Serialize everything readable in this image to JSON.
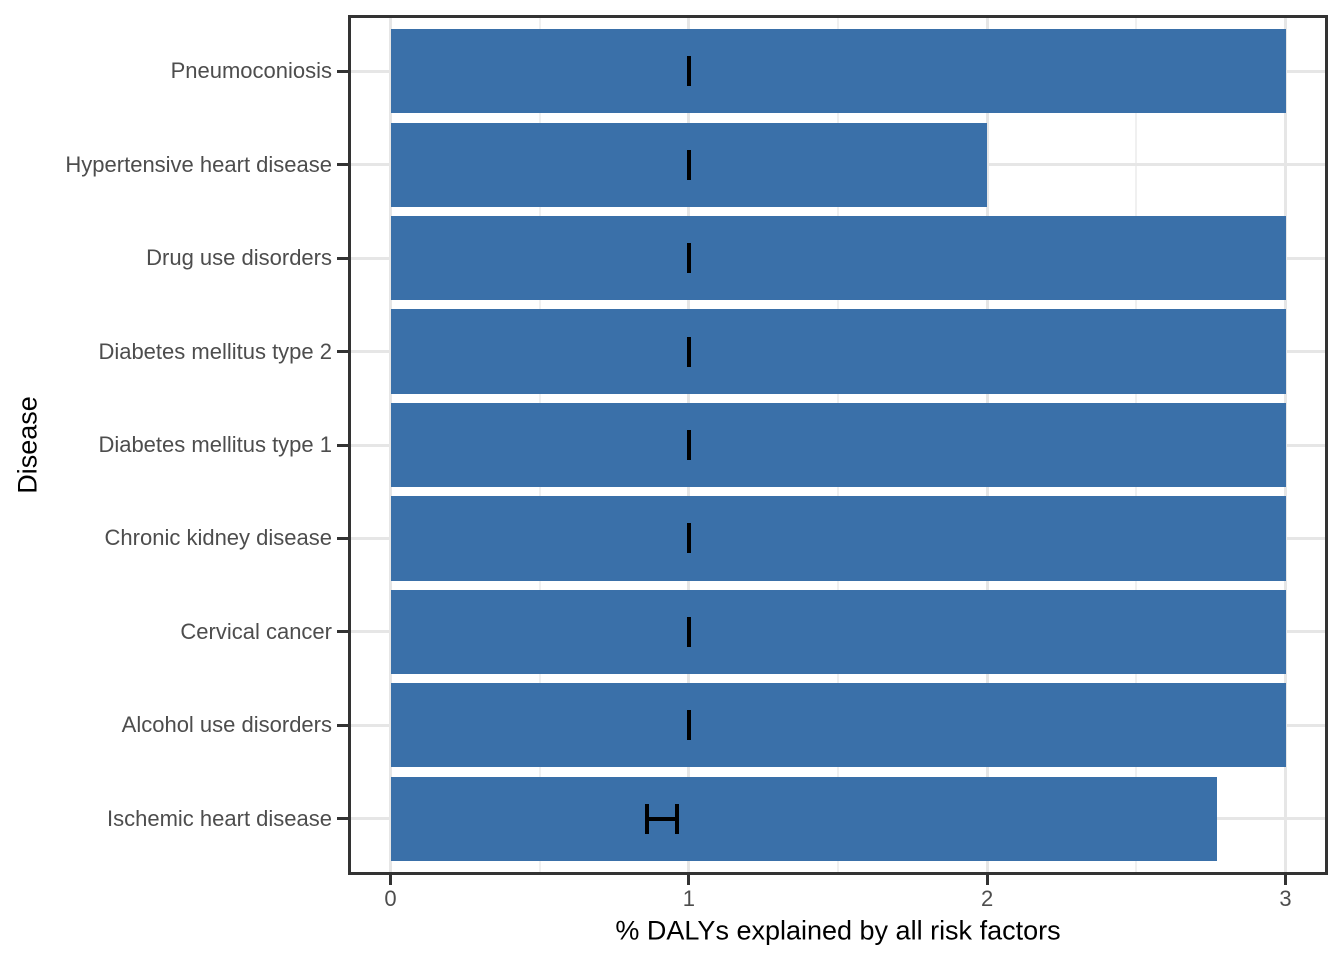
{
  "chart_data": {
    "type": "bar",
    "orientation": "horizontal",
    "title": "",
    "xlabel": "% DALYs explained by all risk factors",
    "ylabel": "Disease",
    "xlim": [
      0,
      3
    ],
    "x_ticks": [
      0,
      1,
      2,
      3
    ],
    "x_tick_labels": [
      "0",
      "1",
      "2",
      "3"
    ],
    "x_minor_gridlines": [
      0.5,
      1.5,
      2.5
    ],
    "grid": "major x and y gridlines plus minor x gridlines, light gray on white panel with dark border",
    "legend": "none",
    "rows": [
      {
        "category": "Pneumoconiosis",
        "value": 3.0,
        "error_xmin": 1.0,
        "error_xmax": 1.0
      },
      {
        "category": "Hypertensive heart disease",
        "value": 2.0,
        "error_xmin": 1.0,
        "error_xmax": 1.0
      },
      {
        "category": "Drug use disorders",
        "value": 3.0,
        "error_xmin": 1.0,
        "error_xmax": 1.0
      },
      {
        "category": "Diabetes mellitus type 2",
        "value": 3.0,
        "error_xmin": 1.0,
        "error_xmax": 1.0
      },
      {
        "category": "Diabetes mellitus type 1",
        "value": 3.0,
        "error_xmin": 1.0,
        "error_xmax": 1.0
      },
      {
        "category": "Chronic kidney disease",
        "value": 3.0,
        "error_xmin": 1.0,
        "error_xmax": 1.0
      },
      {
        "category": "Cervical cancer",
        "value": 3.0,
        "error_xmin": 1.0,
        "error_xmax": 1.0
      },
      {
        "category": "Alcohol use disorders",
        "value": 3.0,
        "error_xmin": 1.0,
        "error_xmax": 1.0
      },
      {
        "category": "Ischemic heart disease",
        "value": 2.77,
        "error_xmin": 0.86,
        "error_xmax": 0.96
      }
    ]
  },
  "colors": {
    "bar": "#3A70A9",
    "errorbar": "#000000",
    "grid_major": "#E6E6E6",
    "grid_minor": "#F0F0F0",
    "panel_border": "#333333",
    "tick_mark": "#333333",
    "tick_label": "#4D4D4D",
    "axis_title": "#000000",
    "background": "#FFFFFF"
  }
}
